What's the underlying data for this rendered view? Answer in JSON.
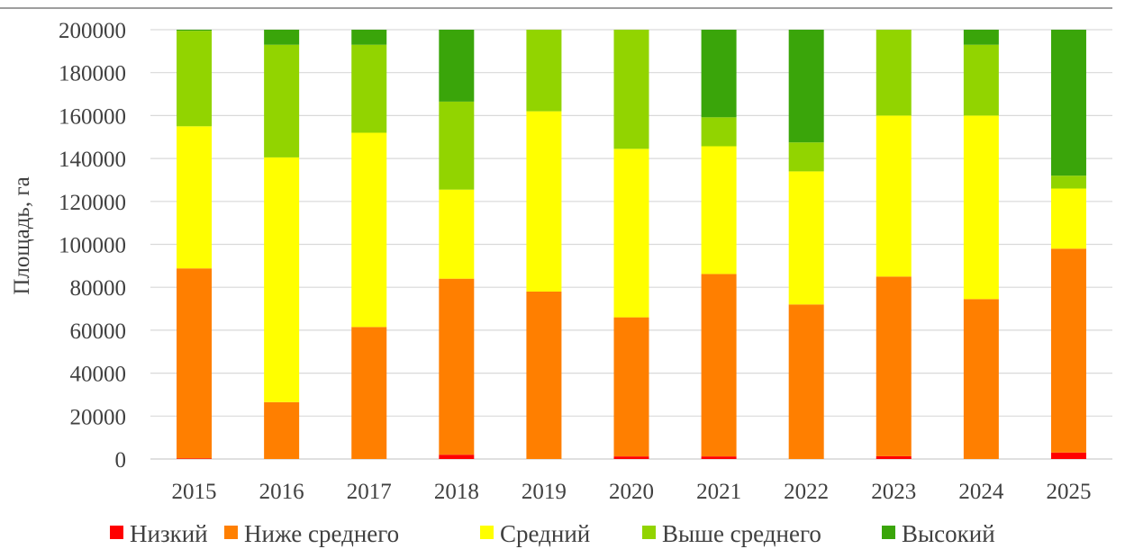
{
  "chart_data": {
    "type": "bar",
    "stacked": true,
    "title": "",
    "xlabel": "",
    "ylabel": "Площадь, га",
    "ylim": [
      0,
      200000
    ],
    "yticks": [
      "0",
      "20000",
      "40000",
      "60000",
      "80000",
      "100000",
      "120000",
      "140000",
      "160000",
      "180000",
      "200000"
    ],
    "grid": true,
    "legend": "bottom",
    "categories": [
      "2015",
      "2016",
      "2017",
      "2018",
      "2019",
      "2020",
      "2021",
      "2022",
      "2023",
      "2024",
      "2025"
    ],
    "series": [
      {
        "name": "Низкий",
        "color": "#ff0000",
        "values": [
          300,
          0,
          0,
          2000,
          0,
          1200,
          1200,
          0,
          1300,
          0,
          3000
        ]
      },
      {
        "name": "Ниже среднего",
        "color": "#ff7f00",
        "values": [
          88500,
          26500,
          61500,
          82000,
          78000,
          64800,
          85000,
          72000,
          83700,
          74500,
          95000
        ]
      },
      {
        "name": "Средний",
        "color": "#ffff00",
        "values": [
          66200,
          114000,
          90500,
          41500,
          84000,
          78500,
          59500,
          62000,
          75000,
          85500,
          28000
        ]
      },
      {
        "name": "Выше среднего",
        "color": "#92d400",
        "values": [
          44500,
          52500,
          41000,
          41000,
          38000,
          55500,
          13500,
          13500,
          40000,
          33000,
          6000
        ]
      },
      {
        "name": "Высокий",
        "color": "#3aa50a",
        "values": [
          500,
          7000,
          7000,
          33500,
          0,
          0,
          40800,
          52500,
          0,
          7000,
          68000
        ]
      }
    ]
  }
}
